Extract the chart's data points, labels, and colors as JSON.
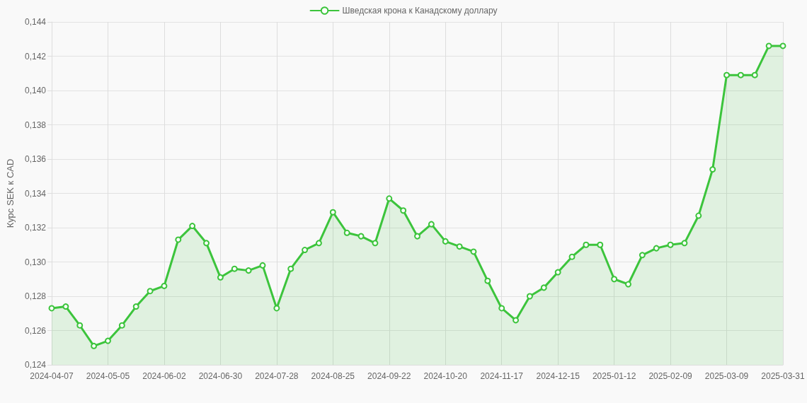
{
  "chart_data": {
    "type": "area",
    "ylabel": "Курс SEK к CAD",
    "categories": [
      "2024-04-07",
      null,
      null,
      null,
      "2024-05-05",
      null,
      null,
      null,
      "2024-06-02",
      null,
      null,
      null,
      "2024-06-30",
      null,
      null,
      null,
      "2024-07-28",
      null,
      null,
      null,
      "2024-08-25",
      null,
      null,
      null,
      "2024-09-22",
      null,
      null,
      null,
      "2024-10-20",
      null,
      null,
      null,
      "2024-11-17",
      null,
      null,
      null,
      "2024-12-15",
      null,
      null,
      null,
      "2025-01-12",
      null,
      null,
      null,
      "2025-02-09",
      null,
      null,
      null,
      "2025-03-09",
      null,
      null,
      null,
      "2025-03-31"
    ],
    "series": [
      {
        "name": "Шведская крона к Канадскому доллару",
        "color": "#3cc43c",
        "values": [
          0.1273,
          0.1274,
          0.1263,
          0.1251,
          0.1254,
          0.1263,
          0.1274,
          0.1283,
          0.1286,
          0.1313,
          0.1321,
          0.1311,
          0.1291,
          0.1296,
          0.1295,
          0.1298,
          0.1273,
          0.1296,
          0.1307,
          0.1311,
          0.1329,
          0.1317,
          0.1315,
          0.1311,
          0.1337,
          0.133,
          0.1315,
          0.1322,
          0.1312,
          0.1309,
          0.1306,
          0.1289,
          0.1273,
          0.1266,
          0.128,
          0.1285,
          0.1294,
          0.1303,
          0.131,
          0.131,
          0.129,
          0.1287,
          0.1304,
          0.1308,
          0.131,
          0.1311,
          0.1327,
          0.1354,
          0.1409,
          0.1409,
          0.1409,
          0.1426,
          0.1426
        ]
      }
    ],
    "ylim": [
      0.124,
      0.144
    ],
    "yticks": [
      {
        "value": 0.124,
        "label": "0,124"
      },
      {
        "value": 0.126,
        "label": "0,126"
      },
      {
        "value": 0.128,
        "label": "0,128"
      },
      {
        "value": 0.13,
        "label": "0,130"
      },
      {
        "value": 0.132,
        "label": "0,132"
      },
      {
        "value": 0.134,
        "label": "0,134"
      },
      {
        "value": 0.136,
        "label": "0,136"
      },
      {
        "value": 0.138,
        "label": "0,138"
      },
      {
        "value": 0.14,
        "label": "0,140"
      },
      {
        "value": 0.142,
        "label": "0,142"
      },
      {
        "value": 0.144,
        "label": "0,144"
      }
    ],
    "grid": true,
    "legend": "top",
    "marker": "circle",
    "line_style": "solid"
  }
}
